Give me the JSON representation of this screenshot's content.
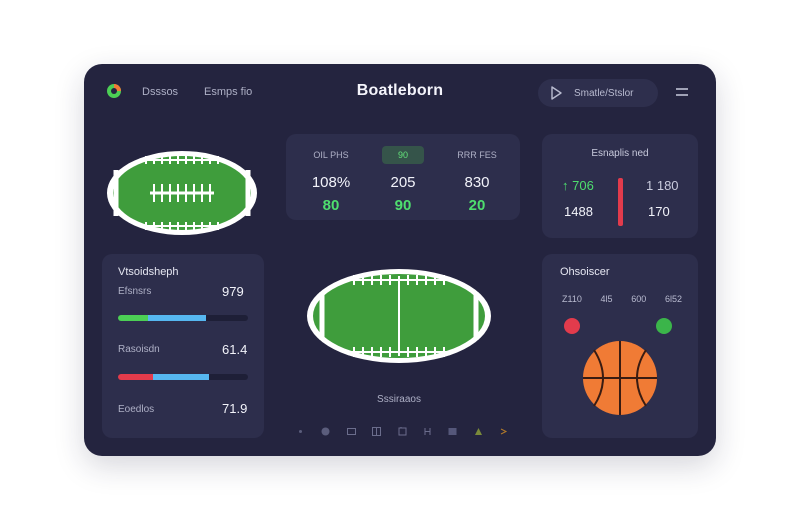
{
  "header": {
    "nav": [
      "Dsssos",
      "Esmps fio"
    ],
    "brand": "Boatleborn",
    "stream_label": "Smatle/Stslor"
  },
  "scoreboard": {
    "columns": [
      {
        "head": "OIL PHS",
        "top": "108%",
        "bottom": "80",
        "active": false
      },
      {
        "head": "90",
        "top": "205",
        "bottom": "90",
        "active": true
      },
      {
        "head": "RRR FES",
        "top": "830",
        "bottom": "20",
        "active": false
      }
    ]
  },
  "stats": {
    "title": "Esnaplis ned",
    "left_top": "↑ 706",
    "left_bottom": "1488",
    "right_top": "1 180",
    "right_bottom": "170"
  },
  "players": {
    "title": "Vtsoidsheph",
    "rows": [
      {
        "name": "Efsnsrs",
        "value": "979",
        "bar": [
          {
            "color": "#4ccf55",
            "pct": 0.23
          },
          {
            "color": "#56b7f0",
            "pct": 0.45
          }
        ]
      },
      {
        "name": "Rasoisdn",
        "value": "61.4",
        "bar": [
          {
            "color": "#e33b4b",
            "pct": 0.27
          },
          {
            "color": "#56b7f0",
            "pct": 0.43
          }
        ]
      },
      {
        "name": "Eoedlos",
        "value": "71.9",
        "bar": []
      }
    ]
  },
  "center": {
    "caption": "Sssiraaos"
  },
  "right_panel": {
    "title": "Ohsoiscer",
    "numbers": [
      "Z110",
      "4l5",
      "600",
      "6l52"
    ]
  },
  "colors": {
    "background": "#24243f",
    "card": "#2d2e4c",
    "green": "#4ede6e",
    "red": "#e23b4c",
    "blue": "#56b7f0",
    "ball_orange": "#f07b35"
  }
}
